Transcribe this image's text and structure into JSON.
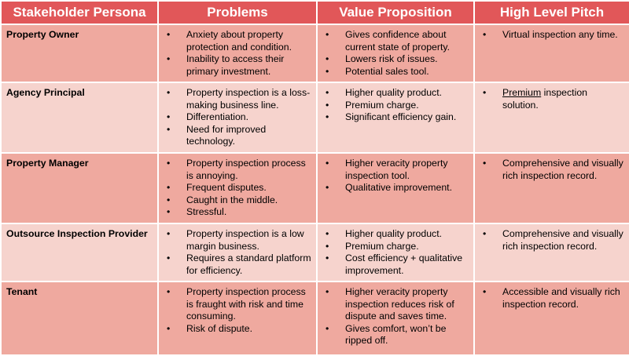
{
  "columns": [
    "Stakeholder Persona",
    "Problems",
    "Value Proposition",
    "High Level Pitch"
  ],
  "rows": [
    {
      "persona": "Property Owner",
      "problems": [
        "Anxiety about property protection and condition.",
        "Inability to access their primary investment."
      ],
      "value": [
        "Gives confidence about current state of property.",
        "Lowers risk of issues.",
        "Potential sales tool."
      ],
      "pitch": [
        "Virtual inspection any time."
      ]
    },
    {
      "persona": "Agency Principal",
      "problems": [
        "Property inspection is a loss-making business line.",
        "Differentiation.",
        "Need for improved technology."
      ],
      "value": [
        "Higher quality product.",
        "Premium charge.",
        "Significant efficiency gain."
      ],
      "pitch_emphasis": "Premium",
      "pitch_rest": " inspection solution."
    },
    {
      "persona": "Property Manager",
      "problems": [
        "Property inspection process is annoying.",
        "Frequent disputes.",
        "Caught in the middle.",
        "Stressful."
      ],
      "value": [
        "Higher veracity property inspection tool.",
        "Qualitative improvement."
      ],
      "pitch": [
        "Comprehensive and visually rich inspection record."
      ]
    },
    {
      "persona": "Outsource Inspection Provider",
      "problems": [
        "Property inspection is a low margin business.",
        "Requires a standard platform for efficiency."
      ],
      "value": [
        "Higher quality product.",
        "Premium charge.",
        "Cost efficiency + qualitative improvement."
      ],
      "pitch": [
        "Comprehensive and visually rich inspection record."
      ]
    },
    {
      "persona": "Tenant",
      "problems": [
        "Property inspection process is fraught with risk and time consuming.",
        "Risk of dispute."
      ],
      "value": [
        "Higher veracity property inspection reduces risk of dispute and saves time.",
        "Gives comfort, won’t be ripped off."
      ],
      "pitch": [
        "Accessible and visually rich inspection record."
      ]
    }
  ]
}
